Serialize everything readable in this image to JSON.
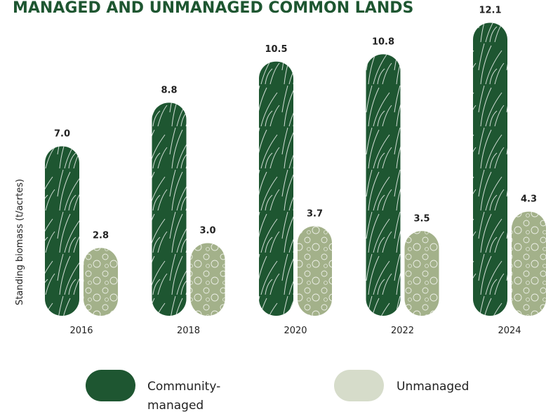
{
  "chart_data": {
    "type": "bar",
    "title": "MANAGED AND UNMANAGED COMMON LANDS",
    "y_label": "Standing biomass (t/acrtes)",
    "categories": [
      "2016",
      "2018",
      "2020",
      "2022",
      "2024"
    ],
    "series": [
      {
        "name": "Community-managed",
        "color": "#1e5631",
        "values": [
          7.0,
          8.8,
          10.5,
          10.8,
          12.1
        ],
        "value_labels": [
          "7.0",
          "8.8",
          "10.5",
          "10.8",
          "12.1"
        ]
      },
      {
        "name": "Unmanaged",
        "color": "#a3b18a",
        "values": [
          2.8,
          3.0,
          3.7,
          3.5,
          4.3
        ],
        "value_labels": [
          "2.8",
          "3.0",
          "3.7",
          "3.5",
          "4.3"
        ]
      }
    ]
  }
}
